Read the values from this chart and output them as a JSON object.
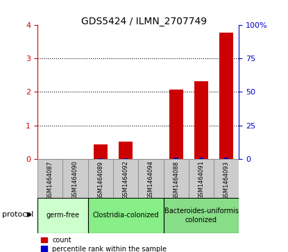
{
  "title": "GDS5424 / ILMN_2707749",
  "samples": [
    "GSM1464087",
    "GSM1464090",
    "GSM1464089",
    "GSM1464092",
    "GSM1464094",
    "GSM1464088",
    "GSM1464091",
    "GSM1464093"
  ],
  "count_values": [
    0.0,
    0.0,
    0.42,
    0.52,
    0.0,
    2.08,
    2.32,
    3.78
  ],
  "percentile_values": [
    0.0,
    0.0,
    0.24,
    0.28,
    0.0,
    0.68,
    0.72,
    1.08
  ],
  "ylim_left": [
    0,
    4
  ],
  "ylim_right": [
    0,
    100
  ],
  "yticks_left": [
    0,
    1,
    2,
    3,
    4
  ],
  "yticks_right": [
    0,
    25,
    50,
    75,
    100
  ],
  "count_color": "#cc0000",
  "percentile_color": "#0000cc",
  "groups": [
    {
      "label": "germ-free",
      "indices": [
        0,
        1
      ],
      "color": "#ccffcc"
    },
    {
      "label": "Clostridia-colonized",
      "indices": [
        2,
        3,
        4
      ],
      "color": "#88ee88"
    },
    {
      "label": "Bacteroides-uniformis\ncolonized",
      "indices": [
        5,
        6,
        7
      ],
      "color": "#88dd88"
    }
  ],
  "legend_count_label": "count",
  "legend_percentile_label": "percentile rank within the sample",
  "tick_color_left": "#cc0000",
  "tick_color_right": "#0000cc"
}
